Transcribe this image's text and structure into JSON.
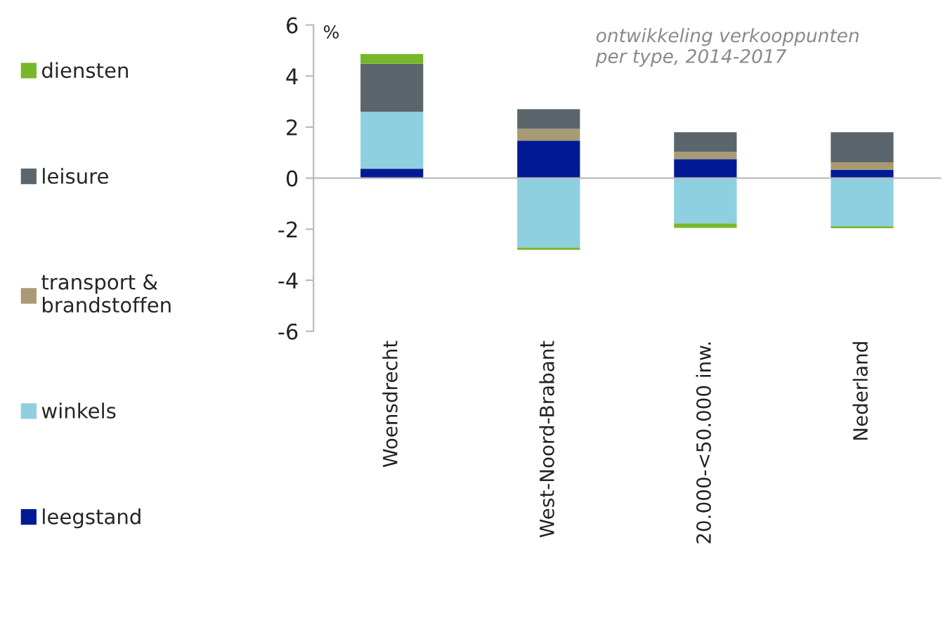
{
  "chart_data": {
    "type": "bar",
    "stacked": true,
    "title": "ontwikkeling verkooppunten\nper type, 2014-2017",
    "ylabel": "%",
    "categories": [
      "Woensdrecht",
      "West-Noord-Brabant",
      "20.000-<50.000 inw.",
      "Nederland"
    ],
    "series": [
      {
        "name": "leegstand",
        "color": "#001a94",
        "values": [
          0.37,
          1.47,
          0.75,
          0.33
        ]
      },
      {
        "name": "winkels",
        "color": "#8ecfe0",
        "values": [
          2.23,
          -2.72,
          -1.78,
          -1.89
        ]
      },
      {
        "name": "transport & brandstoffen",
        "color": "#a89a72",
        "values": [
          0,
          0.46,
          0.28,
          0.29
        ]
      },
      {
        "name": "leisure",
        "color": "#5b666c",
        "values": [
          1.88,
          0.77,
          0.77,
          1.18
        ]
      },
      {
        "name": "diensten",
        "color": "#76b82a",
        "values": [
          0.38,
          -0.09,
          -0.17,
          -0.07
        ]
      }
    ],
    "ylim": [
      -6,
      6
    ],
    "yticks": [
      -6,
      -4,
      -2,
      0,
      2,
      4,
      6
    ],
    "legend": "left"
  }
}
